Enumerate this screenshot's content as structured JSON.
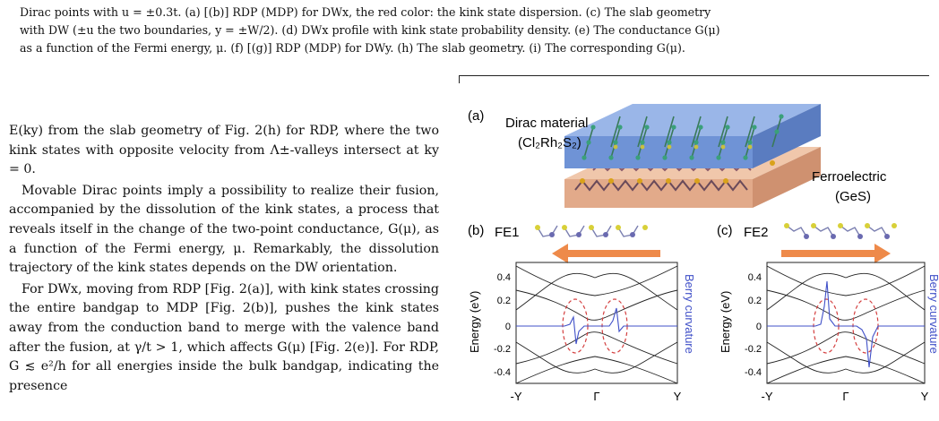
{
  "caption": {
    "line1": "Dirac points with u = ±0.3t. (a) [(b)] RDP (MDP) for DWx, the red color: the kink state dispersion. (c) The slab geometry",
    "line2": "with DW (±u the two boundaries, y = ±W/2). (d) DWx profile with kink state probability density. (e) The conductance G(μ)",
    "line3": "as a function of the Fermi energy, μ. (f) [(g)] RDP (MDP) for DWy. (h) The slab geometry. (i) The corresponding G(μ)."
  },
  "body": {
    "p1": "E(ky) from the slab geometry of Fig. 2(h) for RDP, where the two kink states with opposite velocity from Λ±-valleys intersect at ky = 0.",
    "p2": "Movable Dirac points imply a possibility to realize their fusion, accompanied by the dissolution of the kink states, a process that reveals itself in the change of the two-point conductance, G(μ), as a function of the Fermi energy, μ. Remarkably, the dissolution trajectory of the kink states depends on the DW orientation.",
    "p3": "For DWx, moving from RDP [Fig. 2(a)], with kink states crossing the entire bandgap to MDP [Fig. 2(b)], pushes the kink states away from the conduction band to merge with the valence band after the fusion, at γ/t > 1, which affects G(μ) [Fig. 2(e)]. For RDP, G ≲ e²/h for all energies inside the bulk bandgap, indicating the presence"
  },
  "figure": {
    "panel_a": {
      "label": "(a)",
      "top_material": "Dirac material",
      "top_formula": "(Cl₂Rh₂S₂)",
      "bottom_material": "Ferroelectric",
      "bottom_formula": "(GeS)"
    },
    "panel_b": {
      "label": "(b)",
      "state": "FE1",
      "arrow_direction": "left"
    },
    "panel_c": {
      "label": "(c)",
      "state": "FE2",
      "arrow_direction": "right"
    },
    "axes": {
      "ylabel": "Energy (eV)",
      "right_label": "Berry curvature",
      "yticks": [
        "0.4",
        "0.2",
        "0",
        "-0.2",
        "-0.4"
      ],
      "xticks": [
        "-Y",
        "Γ",
        "Y"
      ]
    },
    "colors": {
      "slab_top": "#6f93d6",
      "slab_bottom": "#e2aa8a",
      "arrow": "#ee8a4a",
      "berry": "#4050c8",
      "ellipse": "#d44040"
    }
  }
}
